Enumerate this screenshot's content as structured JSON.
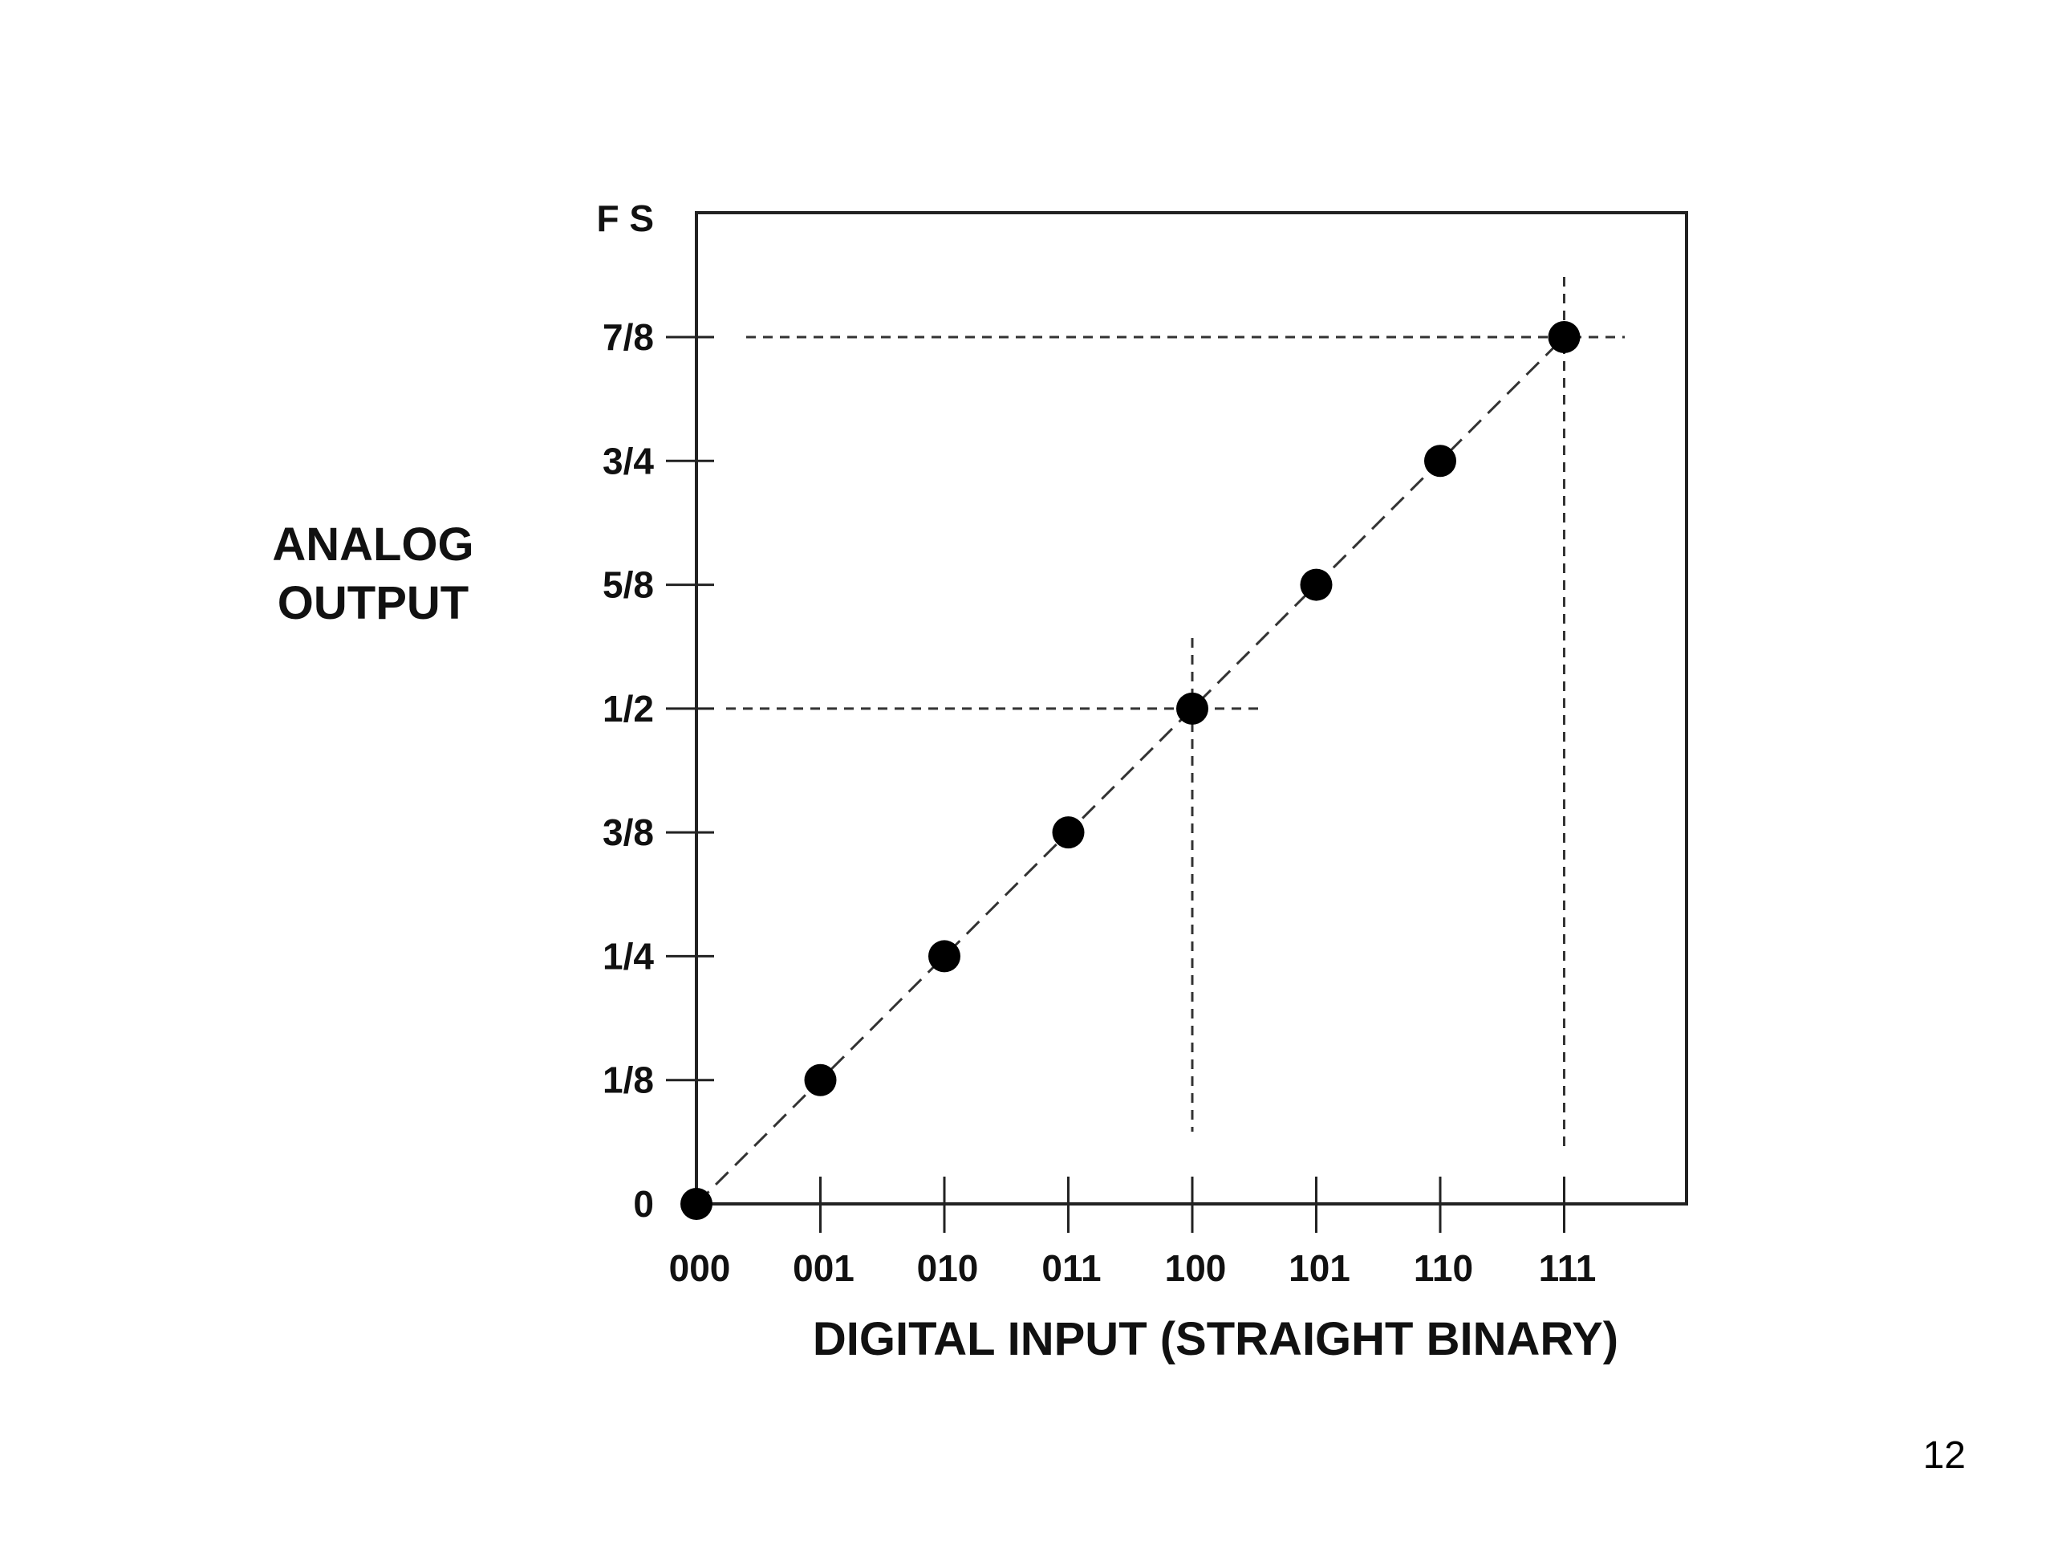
{
  "chart_data": {
    "type": "scatter",
    "title": "",
    "xlabel": "DIGITAL INPUT (STRAIGHT BINARY)",
    "ylabel_lines": [
      "ANALOG",
      "OUTPUT"
    ],
    "x_categories": [
      "000",
      "001",
      "010",
      "011",
      "100",
      "101",
      "110",
      "111"
    ],
    "y_ticks": [
      {
        "value": 0,
        "label": "0"
      },
      {
        "value": 0.125,
        "label": "1/8"
      },
      {
        "value": 0.25,
        "label": "1/4"
      },
      {
        "value": 0.375,
        "label": "3/8"
      },
      {
        "value": 0.5,
        "label": "1/2"
      },
      {
        "value": 0.625,
        "label": "5/8"
      },
      {
        "value": 0.75,
        "label": "3/4"
      },
      {
        "value": 0.875,
        "label": "7/8"
      },
      {
        "value": 1.0,
        "label": "F S"
      }
    ],
    "ylim": [
      0,
      1
    ],
    "points": [
      {
        "x": "000",
        "y": 0
      },
      {
        "x": "001",
        "y": 0.125
      },
      {
        "x": "010",
        "y": 0.25
      },
      {
        "x": "011",
        "y": 0.375
      },
      {
        "x": "100",
        "y": 0.5
      },
      {
        "x": "101",
        "y": 0.625
      },
      {
        "x": "110",
        "y": 0.75
      },
      {
        "x": "111",
        "y": 0.875
      }
    ],
    "reference_lines": [
      {
        "x": "100",
        "y": 0.5
      },
      {
        "x": "111",
        "y": 0.875
      }
    ],
    "trend_line": "dashed",
    "grid": false,
    "legend": "none"
  },
  "slide": {
    "page_number": "12"
  }
}
